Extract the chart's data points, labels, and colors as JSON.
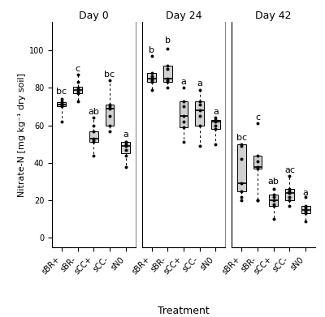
{
  "days": [
    "Day 0",
    "Day 24",
    "Day 42"
  ],
  "treatments": [
    "sBR+",
    "sBR-",
    "sCC+",
    "sCC-",
    "sN0"
  ],
  "ylabel": "Nitrate-N [mg kg⁻¹ dry soil]",
  "xlabel": "Treatment",
  "ylim": [
    -5,
    115
  ],
  "yticks": [
    0,
    20,
    40,
    60,
    80,
    100
  ],
  "box_data": {
    "Day 0": {
      "sBR+": {
        "q1": 70.0,
        "med": 71.0,
        "q3": 72.5,
        "whislo": 62.0,
        "whishi": 75.0
      },
      "sBR-": {
        "q1": 77.0,
        "med": 79.0,
        "q3": 80.5,
        "whislo": 73.0,
        "whishi": 87.0
      },
      "sCC+": {
        "q1": 51.0,
        "med": 53.0,
        "q3": 57.0,
        "whislo": 44.0,
        "whishi": 64.0
      },
      "sCC-": {
        "q1": 60.0,
        "med": 69.0,
        "q3": 71.0,
        "whislo": 57.0,
        "whishi": 84.0
      },
      "sN0": {
        "q1": 45.0,
        "med": 49.0,
        "q3": 51.0,
        "whislo": 38.0,
        "whishi": 51.0
      }
    },
    "Day 24": {
      "sBR+": {
        "q1": 83.0,
        "med": 85.0,
        "q3": 88.0,
        "whislo": 79.0,
        "whishi": 88.0
      },
      "sBR-": {
        "q1": 83.0,
        "med": 85.0,
        "q3": 92.0,
        "whislo": 80.0,
        "whishi": 92.0
      },
      "sCC+": {
        "q1": 59.0,
        "med": 65.0,
        "q3": 73.0,
        "whislo": 51.0,
        "whishi": 73.0
      },
      "sCC-": {
        "q1": 60.0,
        "med": 68.0,
        "q3": 73.0,
        "whislo": 49.0,
        "whishi": 79.0
      },
      "sN0": {
        "q1": 58.0,
        "med": 62.0,
        "q3": 63.0,
        "whislo": 50.0,
        "whishi": 63.0
      }
    },
    "Day 42": {
      "sBR+": {
        "q1": 25.0,
        "med": 29.0,
        "q3": 50.0,
        "whislo": 20.0,
        "whishi": 50.0
      },
      "sBR-": {
        "q1": 37.0,
        "med": 38.0,
        "q3": 44.0,
        "whislo": 20.0,
        "whishi": 44.0
      },
      "sCC+": {
        "q1": 17.0,
        "med": 20.0,
        "q3": 23.0,
        "whislo": 10.0,
        "whishi": 23.0
      },
      "sCC-": {
        "q1": 20.0,
        "med": 24.0,
        "q3": 26.0,
        "whislo": 17.0,
        "whishi": 33.0
      },
      "sN0": {
        "q1": 13.0,
        "med": 15.0,
        "q3": 17.0,
        "whislo": 9.0,
        "whishi": 17.0
      }
    }
  },
  "scatter_data": {
    "Day 0": {
      "sBR+": [
        62,
        70,
        71,
        71,
        72,
        73,
        74
      ],
      "sBR-": [
        73,
        77,
        78,
        79,
        80,
        83,
        87
      ],
      "sCC+": [
        44,
        51,
        52,
        53,
        57,
        60,
        64
      ],
      "sCC-": [
        57,
        60,
        65,
        69,
        70,
        71,
        84
      ],
      "sN0": [
        38,
        44,
        47,
        49,
        50,
        51,
        51
      ]
    },
    "Day 24": {
      "sBR+": [
        79,
        83,
        84,
        85,
        86,
        88,
        97
      ],
      "sBR-": [
        80,
        83,
        84,
        85,
        90,
        92,
        101
      ],
      "sCC+": [
        51,
        59,
        62,
        65,
        70,
        73,
        80
      ],
      "sCC-": [
        49,
        60,
        65,
        68,
        71,
        73,
        79
      ],
      "sN0": [
        50,
        58,
        60,
        62,
        63,
        63,
        64
      ]
    },
    "Day 42": {
      "sBR+": [
        20,
        22,
        25,
        29,
        42,
        49,
        50
      ],
      "sBR-": [
        20,
        20,
        37,
        38,
        41,
        44,
        61
      ],
      "sCC+": [
        10,
        17,
        18,
        20,
        22,
        23,
        26
      ],
      "sCC-": [
        17,
        20,
        22,
        24,
        25,
        26,
        33
      ],
      "sN0": [
        9,
        13,
        14,
        15,
        16,
        17,
        22
      ]
    }
  },
  "letters": {
    "Day 0": {
      "sBR+": "bc",
      "sBR-": "c",
      "sCC+": "ab",
      "sCC-": "bc",
      "sN0": "a"
    },
    "Day 24": {
      "sBR+": "b",
      "sBR-": "b",
      "sCC+": "a",
      "sCC-": "a",
      "sN0": "a"
    },
    "Day 42": {
      "sBR+": "bc",
      "sBR-": "c",
      "sCC+": "ab",
      "sCC-": "ac",
      "sN0": "a"
    }
  },
  "letter_y": {
    "Day 0": {
      "sBR+": 76,
      "sBR-": 88,
      "sCC+": 65,
      "sCC-": 85,
      "sN0": 53
    },
    "Day 24": {
      "sBR+": 98,
      "sBR-": 103,
      "sCC+": 81,
      "sCC-": 80,
      "sN0": 65
    },
    "Day 42": {
      "sBR+": 51,
      "sBR-": 62,
      "sCC+": 28,
      "sCC-": 34,
      "sN0": 22
    }
  },
  "box_facecolor": "#d0d0d0",
  "box_edgecolor": "#000000",
  "median_color": "#000000",
  "whisker_color": "#000000",
  "scatter_color": "#000000",
  "scatter_size": 8,
  "scatter_marker": "o",
  "face_color": "#ffffff",
  "title_fontsize": 9,
  "label_fontsize": 8,
  "tick_fontsize": 7,
  "letter_fontsize": 8
}
